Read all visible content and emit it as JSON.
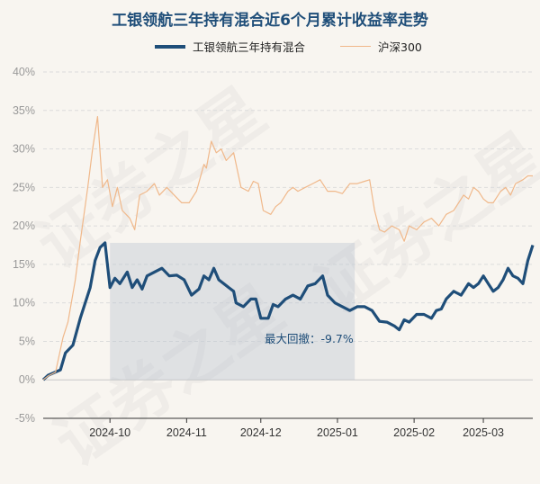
{
  "chart_data": {
    "type": "line",
    "title": "工银领航三年持有混合近6个月累计收益率走势",
    "legend_position": "top",
    "grid": true,
    "xlabels": [
      "2024-10",
      "2024-11",
      "2024-12",
      "2025-01",
      "2025-02",
      "2025-03"
    ],
    "xlabel_dates": [
      "2024-10-01",
      "2024-11-01",
      "2024-12-01",
      "2025-01-01",
      "2025-02-01",
      "2025-03-01"
    ],
    "yticks": [
      "-5%",
      "0%",
      "5%",
      "10%",
      "15%",
      "20%",
      "25%",
      "30%",
      "35%",
      "40%"
    ],
    "ylim": [
      -5,
      40
    ],
    "xlim": [
      "2024-09-04",
      "2025-03-21"
    ],
    "annotation": {
      "text": "最大回撤：-9.7%",
      "shade_from": "2024-10-01",
      "shade_to": "2025-01-08",
      "shade_color": "#b8c4d0"
    },
    "colors": {
      "fund": "#1f4e79",
      "index": "#f0b88a",
      "title": "#1f4e79"
    },
    "series": [
      {
        "name": "工银领航三年持有混合",
        "color": "#1f4e79",
        "points": [
          [
            "2024-09-04",
            0
          ],
          [
            "2024-09-06",
            0.6
          ],
          [
            "2024-09-11",
            1.3
          ],
          [
            "2024-09-13",
            3.5
          ],
          [
            "2024-09-16",
            4.5
          ],
          [
            "2024-09-19",
            8
          ],
          [
            "2024-09-23",
            12
          ],
          [
            "2024-09-25",
            15.5
          ],
          [
            "2024-09-27",
            17.2
          ],
          [
            "2024-09-29",
            17.8
          ],
          [
            "2024-10-01",
            12
          ],
          [
            "2024-10-03",
            13.2
          ],
          [
            "2024-10-05",
            12.5
          ],
          [
            "2024-10-08",
            14
          ],
          [
            "2024-10-10",
            12
          ],
          [
            "2024-10-12",
            13
          ],
          [
            "2024-10-14",
            11.8
          ],
          [
            "2024-10-16",
            13.5
          ],
          [
            "2024-10-19",
            14
          ],
          [
            "2024-10-22",
            14.5
          ],
          [
            "2024-10-25",
            13.5
          ],
          [
            "2024-10-28",
            13.6
          ],
          [
            "2024-10-31",
            13
          ],
          [
            "2024-11-03",
            11
          ],
          [
            "2024-11-06",
            11.8
          ],
          [
            "2024-11-08",
            13.5
          ],
          [
            "2024-11-10",
            13
          ],
          [
            "2024-11-12",
            14.5
          ],
          [
            "2024-11-14",
            13
          ],
          [
            "2024-11-18",
            12
          ],
          [
            "2024-11-20",
            11.5
          ],
          [
            "2024-11-21",
            10
          ],
          [
            "2024-11-24",
            9.5
          ],
          [
            "2024-11-27",
            10.5
          ],
          [
            "2024-11-29",
            10.5
          ],
          [
            "2024-12-01",
            8
          ],
          [
            "2024-12-04",
            8
          ],
          [
            "2024-12-06",
            9.8
          ],
          [
            "2024-12-08",
            9.5
          ],
          [
            "2024-12-11",
            10.5
          ],
          [
            "2024-12-14",
            11
          ],
          [
            "2024-12-17",
            10.5
          ],
          [
            "2024-12-20",
            12.2
          ],
          [
            "2024-12-23",
            12.5
          ],
          [
            "2024-12-26",
            13.5
          ],
          [
            "2024-12-28",
            11
          ],
          [
            "2024-12-31",
            10
          ],
          [
            "2025-01-03",
            9.5
          ],
          [
            "2025-01-06",
            9
          ],
          [
            "2025-01-09",
            9.5
          ],
          [
            "2025-01-12",
            9.5
          ],
          [
            "2025-01-15",
            9
          ],
          [
            "2025-01-18",
            7.6
          ],
          [
            "2025-01-21",
            7.5
          ],
          [
            "2025-01-24",
            7
          ],
          [
            "2025-01-26",
            6.5
          ],
          [
            "2025-01-28",
            7.8
          ],
          [
            "2025-01-30",
            7.5
          ],
          [
            "2025-02-02",
            8.5
          ],
          [
            "2025-02-05",
            8.5
          ],
          [
            "2025-02-08",
            8
          ],
          [
            "2025-02-10",
            9
          ],
          [
            "2025-02-12",
            9.2
          ],
          [
            "2025-02-14",
            10.5
          ],
          [
            "2025-02-17",
            11.5
          ],
          [
            "2025-02-20",
            11
          ],
          [
            "2025-02-23",
            12.5
          ],
          [
            "2025-02-25",
            12
          ],
          [
            "2025-02-27",
            12.5
          ],
          [
            "2025-03-01",
            13.5
          ],
          [
            "2025-03-03",
            12.5
          ],
          [
            "2025-03-05",
            11.5
          ],
          [
            "2025-03-07",
            12
          ],
          [
            "2025-03-09",
            13
          ],
          [
            "2025-03-11",
            14.5
          ],
          [
            "2025-03-13",
            13.5
          ],
          [
            "2025-03-15",
            13.2
          ],
          [
            "2025-03-17",
            12.5
          ],
          [
            "2025-03-19",
            15.5
          ],
          [
            "2025-03-21",
            17.5
          ]
        ]
      },
      {
        "name": "沪深300",
        "color": "#f0b88a",
        "points": [
          [
            "2024-09-04",
            0
          ],
          [
            "2024-09-06",
            0.5
          ],
          [
            "2024-09-09",
            1.0
          ],
          [
            "2024-09-12",
            5.5
          ],
          [
            "2024-09-14",
            7.5
          ],
          [
            "2024-09-17",
            13
          ],
          [
            "2024-09-19",
            18
          ],
          [
            "2024-09-22",
            25
          ],
          [
            "2024-09-24",
            30
          ],
          [
            "2024-09-26",
            34.2
          ],
          [
            "2024-09-28",
            25
          ],
          [
            "2024-09-30",
            26
          ],
          [
            "2024-10-02",
            22.5
          ],
          [
            "2024-10-04",
            25
          ],
          [
            "2024-10-06",
            22
          ],
          [
            "2024-10-09",
            21
          ],
          [
            "2024-10-11",
            19.5
          ],
          [
            "2024-10-13",
            24
          ],
          [
            "2024-10-16",
            24.5
          ],
          [
            "2024-10-19",
            25.5
          ],
          [
            "2024-10-21",
            24
          ],
          [
            "2024-10-24",
            25
          ],
          [
            "2024-10-27",
            24
          ],
          [
            "2024-10-30",
            23
          ],
          [
            "2024-11-02",
            23
          ],
          [
            "2024-11-05",
            24.5
          ],
          [
            "2024-11-08",
            28
          ],
          [
            "2024-11-09",
            27.5
          ],
          [
            "2024-11-11",
            31
          ],
          [
            "2024-11-13",
            29.5
          ],
          [
            "2024-11-15",
            30
          ],
          [
            "2024-11-17",
            28.5
          ],
          [
            "2024-11-20",
            29.5
          ],
          [
            "2024-11-23",
            25
          ],
          [
            "2024-11-26",
            24.5
          ],
          [
            "2024-11-28",
            25.8
          ],
          [
            "2024-11-30",
            25.5
          ],
          [
            "2024-12-02",
            22
          ],
          [
            "2024-12-05",
            21.5
          ],
          [
            "2024-12-07",
            22.5
          ],
          [
            "2024-12-09",
            23
          ],
          [
            "2024-12-12",
            24.5
          ],
          [
            "2024-12-14",
            25
          ],
          [
            "2024-12-16",
            24.5
          ],
          [
            "2024-12-19",
            25
          ],
          [
            "2024-12-22",
            25.5
          ],
          [
            "2024-12-25",
            26
          ],
          [
            "2024-12-28",
            24.5
          ],
          [
            "2024-12-31",
            24.5
          ],
          [
            "2025-01-03",
            24.2
          ],
          [
            "2025-01-06",
            25.5
          ],
          [
            "2025-01-09",
            25.5
          ],
          [
            "2025-01-12",
            25.8
          ],
          [
            "2025-01-14",
            26
          ],
          [
            "2025-01-16",
            22
          ],
          [
            "2025-01-18",
            19.5
          ],
          [
            "2025-01-20",
            19.2
          ],
          [
            "2025-01-23",
            20
          ],
          [
            "2025-01-26",
            19.5
          ],
          [
            "2025-01-28",
            18
          ],
          [
            "2025-01-30",
            20
          ],
          [
            "2025-02-02",
            19.5
          ],
          [
            "2025-02-05",
            20.5
          ],
          [
            "2025-02-08",
            21
          ],
          [
            "2025-02-11",
            20
          ],
          [
            "2025-02-14",
            21.5
          ],
          [
            "2025-02-17",
            22
          ],
          [
            "2025-02-19",
            23
          ],
          [
            "2025-02-21",
            24
          ],
          [
            "2025-02-23",
            23.5
          ],
          [
            "2025-02-25",
            25
          ],
          [
            "2025-02-27",
            24.5
          ],
          [
            "2025-03-01",
            23.5
          ],
          [
            "2025-03-03",
            23
          ],
          [
            "2025-03-05",
            23
          ],
          [
            "2025-03-08",
            24.5
          ],
          [
            "2025-03-10",
            25
          ],
          [
            "2025-03-12",
            24
          ],
          [
            "2025-03-14",
            25.5
          ],
          [
            "2025-03-17",
            26
          ],
          [
            "2025-03-19",
            26.5
          ],
          [
            "2025-03-21",
            26.5
          ]
        ]
      }
    ]
  }
}
